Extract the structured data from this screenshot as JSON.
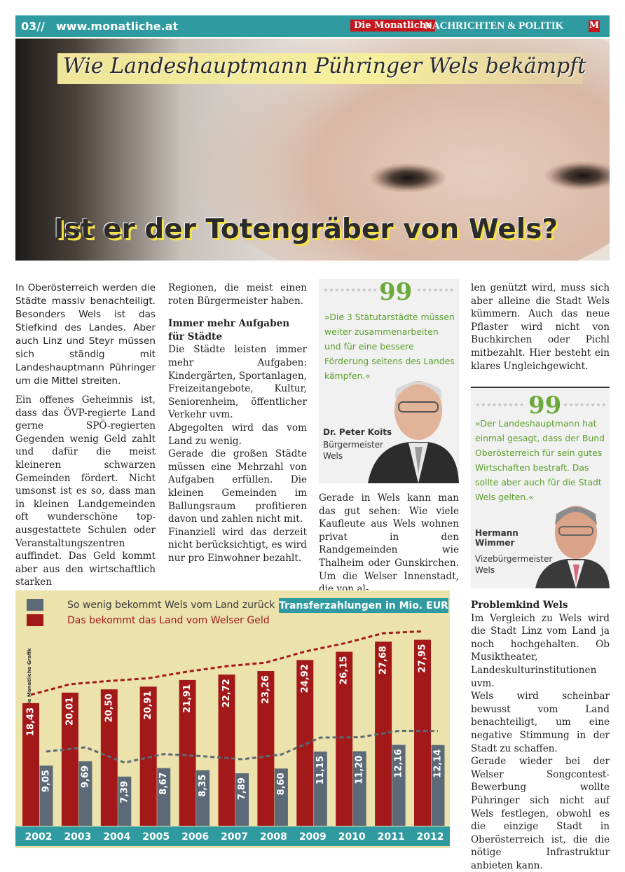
{
  "header": {
    "issue": "03//",
    "url": "www.monatliche.at",
    "brand": "Die Monatliche",
    "section": "NACHRICHTEN & POLITIK",
    "logo": "M"
  },
  "hero": {
    "kicker": "Wie Landeshauptmann Pühringer Wels bekämpft",
    "headline": "Ist er der Totengräber von Wels?"
  },
  "article": {
    "col1": {
      "lead": "In Oberösterreich werden die Städte massiv benachteiligt. Besonders Wels ist das Stiefkind des Landes. Aber auch Linz und Steyr müssen sich ständig mit Landeshauptmann Pühringer um die Mittel streiten.",
      "p1": "Ein offenes Geheimnis ist, dass das ÖVP-regierte Land gerne SPÖ-regierten Gegenden wenig Geld zahlt und dafür die meist kleineren schwarzen Gemeinden fördert. Nicht umsonst ist es so, dass man in kleinen Landgemeinden oft wunderschöne top-ausgestattete Schulen oder Veranstaltungszentren auffindet. Das Geld kommt aber aus den wirtschaftlich starken"
    },
    "col2": {
      "p1": "Regionen, die meist einen roten Bürgermeister haben.",
      "subhead": "Immer mehr Aufgaben für Städte",
      "p2": "Die Städte leisten immer mehr Aufgaben: Kindergärten, Sportanlagen, Freizeitangebote, Kultur, Seniorenheim, öffentlicher Verkehr uvm.",
      "p3": "Abgegolten wird das vom Land zu wenig.",
      "p4": "Gerade die großen Städte müssen eine Mehrzahl von Aufgaben erfüllen. Die kleinen Gemeinden im Ballungsraum profitieren davon und zahlen nicht mit.",
      "p5": "Finanziell wird das derzeit nicht berücksichtigt, es wird nur pro Einwohner bezahlt."
    },
    "col3": {
      "p1": "Gerade in Wels kann man das gut sehen: Wie viele Kaufleute aus Wels wohnen privat in den Randgemeinden wie Thalheim oder Gunskirchen. Um die Welser Innenstadt, die von al-"
    },
    "col4": {
      "p1": "len genützt wird, muss sich aber alleine die Stadt Wels kümmern. Auch das neue Pflaster wird nicht von Buchkirchen oder Pichl mitbezahlt. Hier besteht ein klares Ungleichgewicht.",
      "subhead": "Problemkind Wels",
      "p2": "Im Vergleich zu Wels wird die Stadt Linz vom Land ja noch hochgehalten. Ob Musiktheater, Landeskulturinstitutionen uvm.",
      "p3": "Wels wird scheinbar bewusst vom Land benachteiligt, um eine negative Stimmung in der Stadt zu schaffen.",
      "p4": "Gerade wieder bei der Welser Songcontest-Bewerbung wollte Pühringer sich nicht auf Wels festlegen, obwohl es die einzige Stadt in Oberösterreich ist, die die nötige Infrastruktur anbieten kann."
    }
  },
  "quotes": [
    {
      "text": "»Die 3 Statutarstädte müssen weiter zusammenarbeiten und für eine bessere Förderung seitens des Landes kämpfen.«",
      "name": "Dr. Peter Koits",
      "role": "Bürgermeister",
      "place": "Wels"
    },
    {
      "text": "»Der Landeshauptmann hat einmal gesagt, dass der Bund Oberösterreich für sein gutes Wirtschaften bestraft. Das sollte aber auch für die Stadt Wels gelten.«",
      "name": "Hermann Wimmer",
      "role": "Vizebürgermeister",
      "place": "Wels"
    }
  ],
  "chart_data": {
    "type": "bar",
    "title": "Transferzahlungen in Mio. EUR",
    "credit": "Die Monatliche Grafik",
    "categories": [
      "2002",
      "2003",
      "2004",
      "2005",
      "2006",
      "2007",
      "2008",
      "2009",
      "2010",
      "2011",
      "2012"
    ],
    "series": [
      {
        "name": "So wenig bekommt Wels vom Land zurück",
        "color": "#5b6a76",
        "values": [
          9.05,
          9.69,
          7.39,
          8.67,
          8.35,
          7.89,
          8.6,
          11.15,
          11.2,
          12.16,
          12.14
        ],
        "value_labels": [
          "9,05",
          "9,69",
          "7,39",
          "8,67",
          "8,35",
          "7,89",
          "8,60",
          "11,15",
          "11,20",
          "12,16",
          "12,14"
        ]
      },
      {
        "name": "Das bekommt das Land vom Welser Geld",
        "color": "#a3191a",
        "values": [
          18.43,
          20.01,
          20.5,
          20.91,
          21.91,
          22.72,
          23.26,
          24.92,
          26.15,
          27.68,
          27.95
        ],
        "value_labels": [
          "18,43",
          "20,01",
          "20,50",
          "20,91",
          "21,91",
          "22,72",
          "23,26",
          "24,92",
          "26,15",
          "27,68",
          "27,95"
        ]
      }
    ]
  }
}
